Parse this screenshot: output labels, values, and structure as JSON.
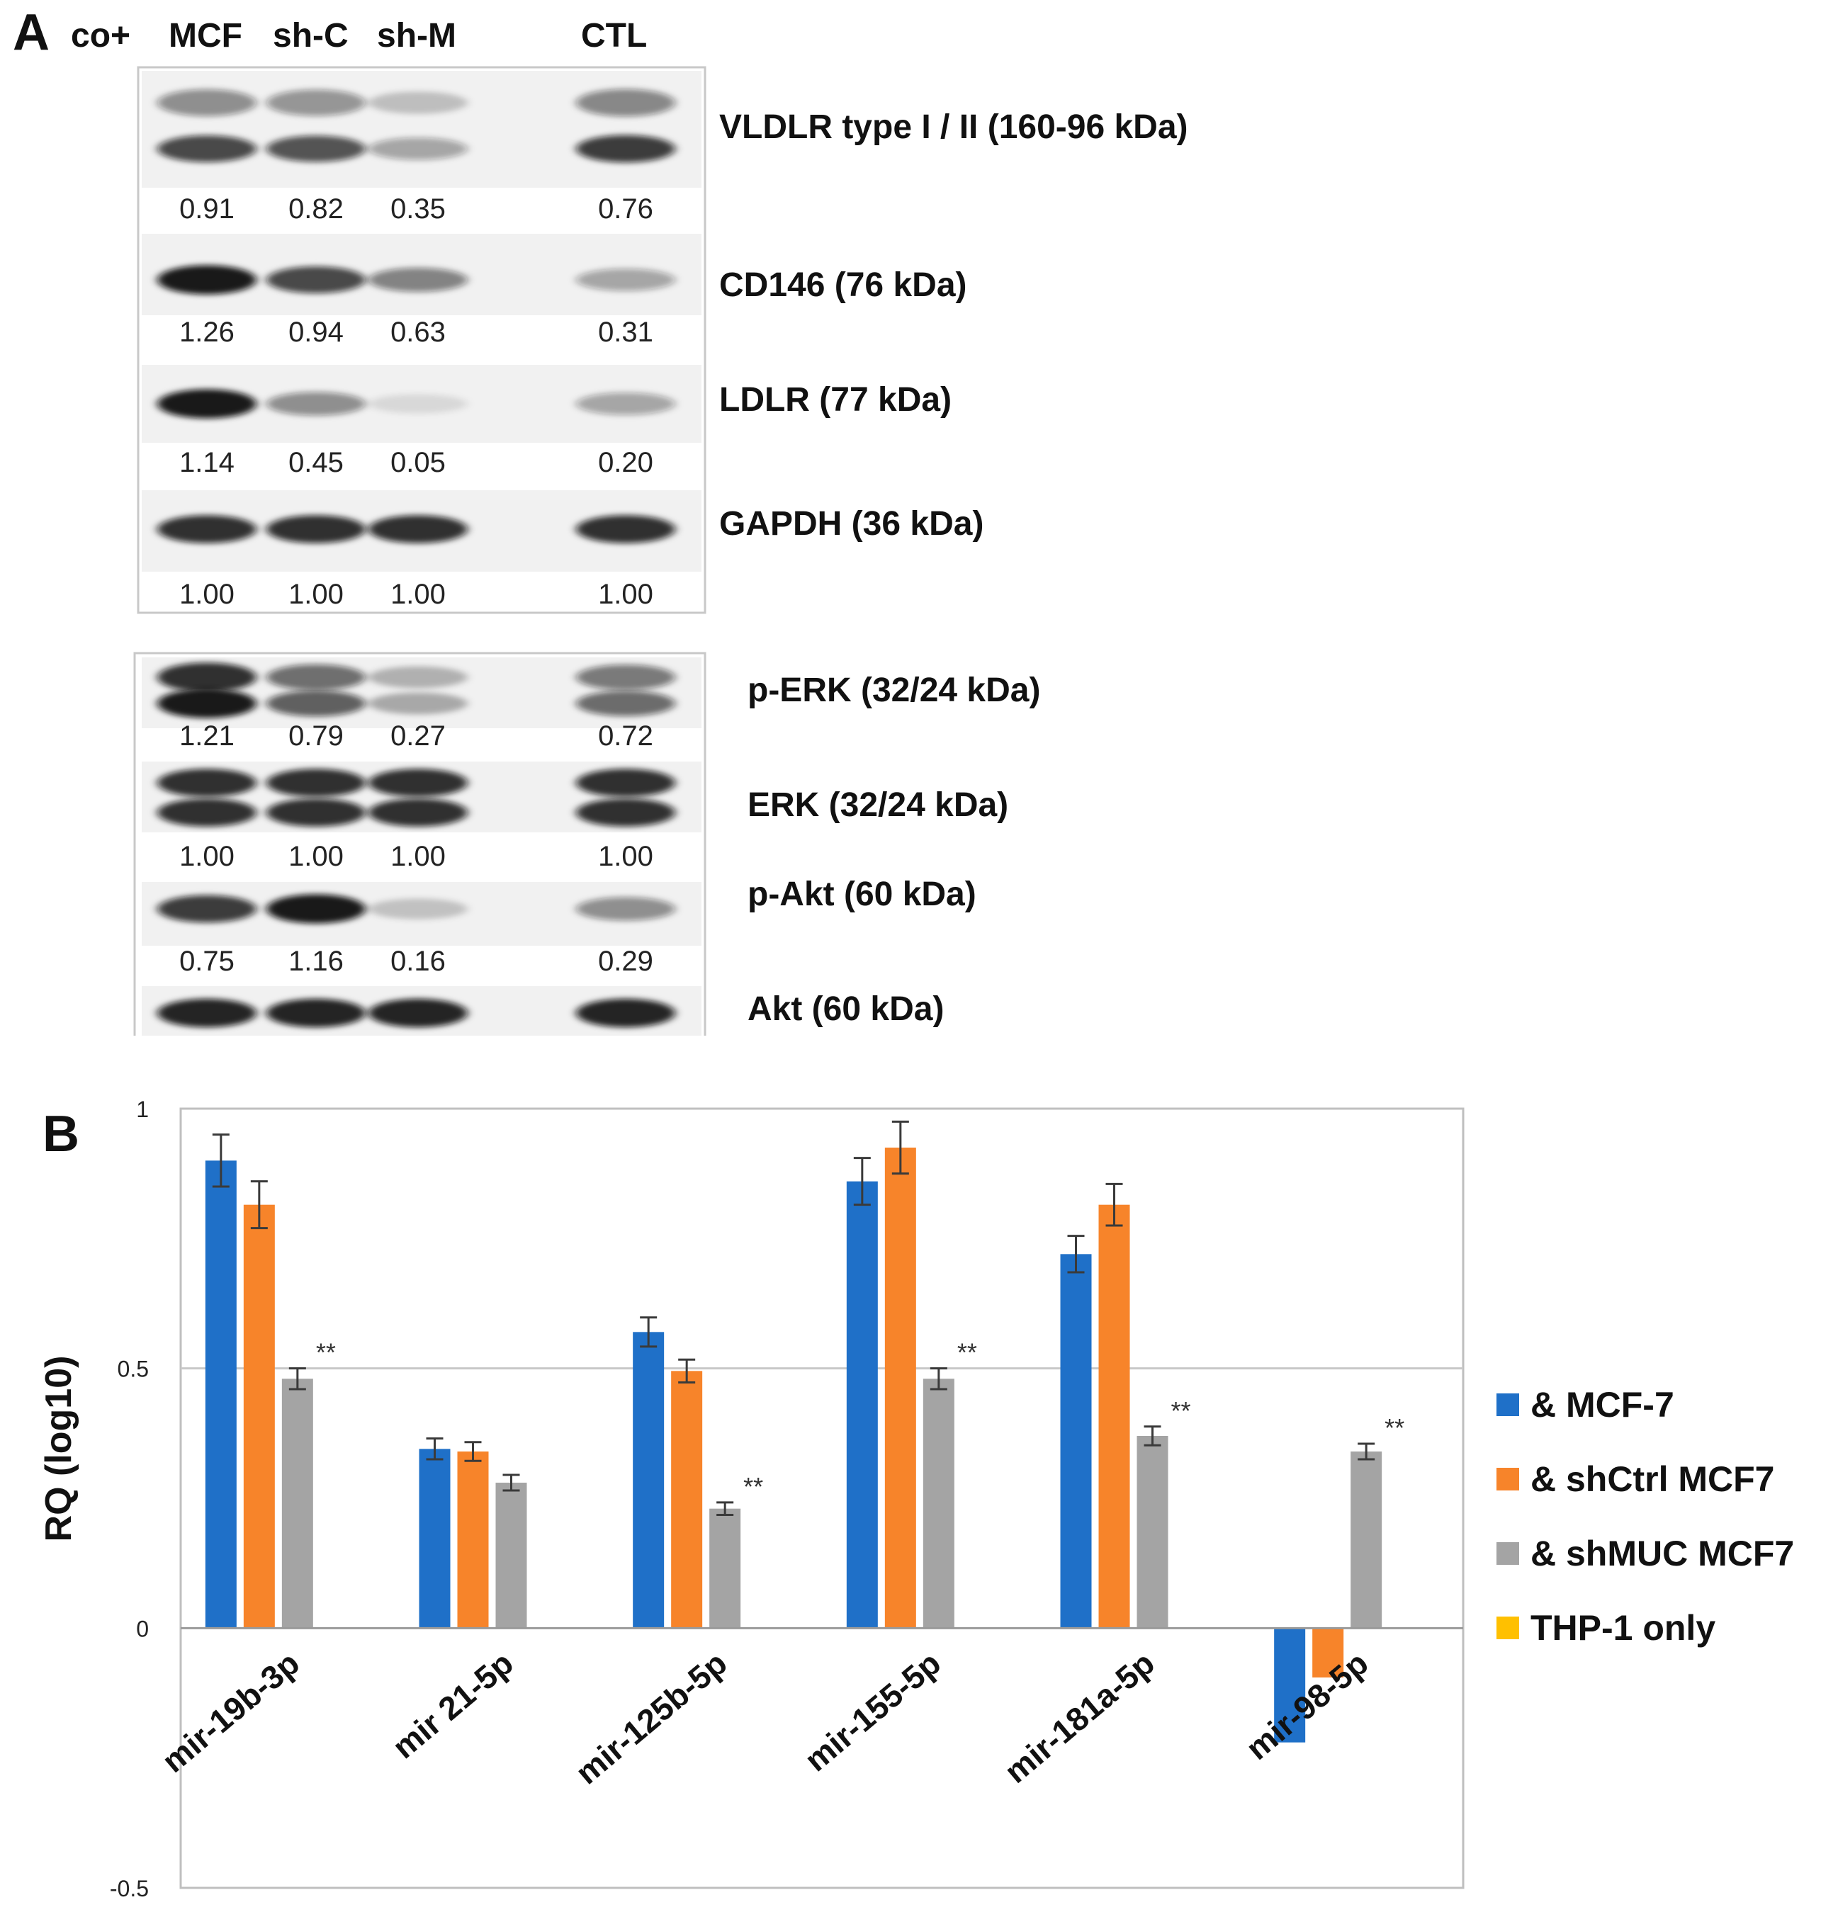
{
  "panel_a": {
    "letter": "A",
    "lane_headers": [
      "co+",
      "MCF",
      "sh-C",
      "sh-M",
      "CTL"
    ],
    "blots": [
      {
        "label": "VLDLR type I / II (160-96 kDa)",
        "values": [
          "0.91",
          "0.82",
          "0.35",
          "0.76"
        ],
        "band_intensity": [
          0.75,
          0.7,
          0.35,
          0.8
        ]
      },
      {
        "label": "CD146 (76 kDa)",
        "values": [
          "1.26",
          "0.94",
          "0.63",
          "0.31"
        ],
        "band_intensity": [
          0.95,
          0.75,
          0.5,
          0.35
        ]
      },
      {
        "label": "LDLR (77 kDa)",
        "values": [
          "1.14",
          "0.45",
          "0.05",
          "0.20"
        ],
        "band_intensity": [
          0.95,
          0.45,
          0.1,
          0.35
        ]
      },
      {
        "label": "GAPDH (36 kDa)",
        "values": [
          "1.00",
          "1.00",
          "1.00",
          "1.00"
        ],
        "band_intensity": [
          0.85,
          0.85,
          0.85,
          0.85
        ]
      },
      {
        "label": "p-ERK (32/24 kDa)",
        "values": [
          "1.21",
          "0.79",
          "0.27",
          "0.72"
        ],
        "band_intensity": [
          0.95,
          0.65,
          0.3,
          0.6
        ]
      },
      {
        "label": "ERK (32/24 kDa)",
        "values": [
          "1.00",
          "1.00",
          "1.00",
          "1.00"
        ],
        "band_intensity": [
          0.85,
          0.85,
          0.85,
          0.85
        ]
      },
      {
        "label": "p-Akt (60 kDa)",
        "values": [
          "0.75",
          "1.16",
          "0.16",
          "0.29"
        ],
        "band_intensity": [
          0.8,
          0.95,
          0.2,
          0.45
        ]
      },
      {
        "label": "Akt (60 kDa)",
        "values": [],
        "band_intensity": [
          0.9,
          0.9,
          0.9,
          0.9
        ]
      }
    ]
  },
  "panel_b": {
    "letter": "B",
    "sig_marker": "**"
  },
  "chart_data": {
    "type": "bar",
    "title": "",
    "xlabel": "",
    "ylabel": "RQ (log10)",
    "ylim": [
      -0.5,
      1
    ],
    "yticks": [
      "1",
      "0.5",
      "0",
      "-0.5"
    ],
    "ytick_values": [
      1,
      0.5,
      0,
      -0.5
    ],
    "gridlines": [
      0.5
    ],
    "legend_position": "right",
    "categories": [
      "mir-19b-3p",
      "mir 21-5p",
      "mir-125b-5p",
      "mir-155-5p",
      "mir-181a-5p",
      "mir-98-5p"
    ],
    "series": [
      {
        "name": "& MCF-7",
        "color": "#1f70c8",
        "values": [
          0.9,
          0.345,
          0.57,
          0.86,
          0.72,
          -0.22
        ],
        "errors": [
          0.05,
          0.02,
          0.028,
          0.045,
          0.035,
          0.0
        ]
      },
      {
        "name": "& shCtrl MCF7",
        "color": "#f7842a",
        "values": [
          0.815,
          0.34,
          0.495,
          0.925,
          0.815,
          -0.095
        ],
        "errors": [
          0.045,
          0.018,
          0.022,
          0.05,
          0.04,
          0.0
        ]
      },
      {
        "name": "& shMUC MCF7",
        "color": "#a4a4a4",
        "values": [
          0.48,
          0.28,
          0.23,
          0.48,
          0.37,
          0.34
        ],
        "errors": [
          0.02,
          0.015,
          0.012,
          0.02,
          0.018,
          0.015
        ]
      },
      {
        "name": "THP-1 only",
        "color": "#ffc000",
        "values": [
          0,
          0,
          0,
          0,
          0,
          0
        ],
        "errors": [
          0,
          0,
          0,
          0,
          0,
          0
        ]
      }
    ],
    "significance": [
      {
        "category": "mir-19b-3p",
        "series": "& shMUC MCF7",
        "mark": "**"
      },
      {
        "category": "mir-125b-5p",
        "series": "& shMUC MCF7",
        "mark": "**"
      },
      {
        "category": "mir-155-5p",
        "series": "& shMUC MCF7",
        "mark": "**"
      },
      {
        "category": "mir-181a-5p",
        "series": "& shMUC MCF7",
        "mark": "**"
      },
      {
        "category": "mir-98-5p",
        "series": "& shMUC MCF7",
        "mark": "**"
      }
    ]
  }
}
